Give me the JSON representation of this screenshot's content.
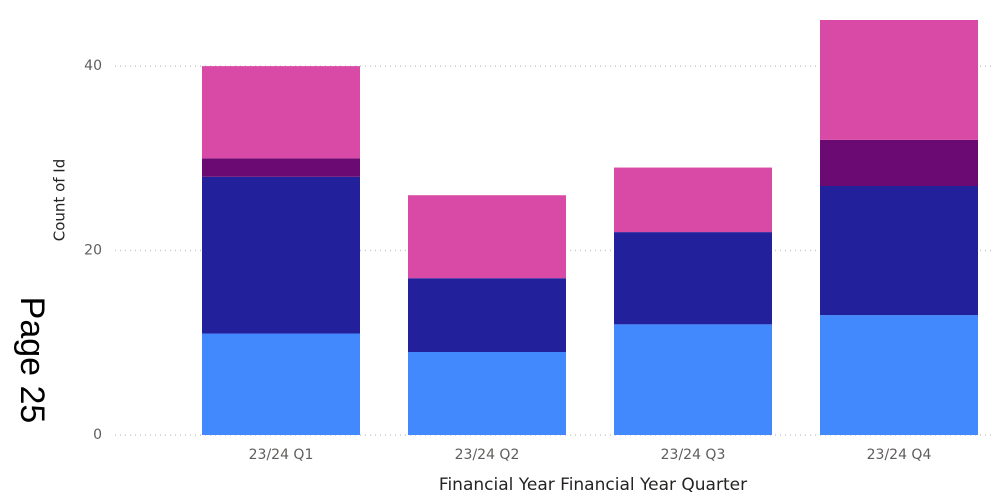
{
  "page_label": "Page 25",
  "chart_data": {
    "type": "stacked_bar",
    "xlabel": "Financial Year Financial Year Quarter",
    "ylabel": "Count of Id",
    "categories": [
      "23/24 Q1",
      "23/24 Q2",
      "23/24 Q3",
      "23/24 Q4"
    ],
    "series": [
      {
        "color": "#4189fc",
        "values": [
          11,
          9,
          12,
          13
        ]
      },
      {
        "color": "#22209a",
        "values": [
          17,
          8,
          10,
          14
        ]
      },
      {
        "color": "#6a0a72",
        "values": [
          2,
          0,
          0,
          5
        ]
      },
      {
        "color": "#d94aa6",
        "values": [
          10,
          9,
          7,
          13
        ]
      }
    ],
    "ylim": [
      0,
      45
    ],
    "yticks": [
      0,
      20,
      40
    ],
    "grid": true
  }
}
